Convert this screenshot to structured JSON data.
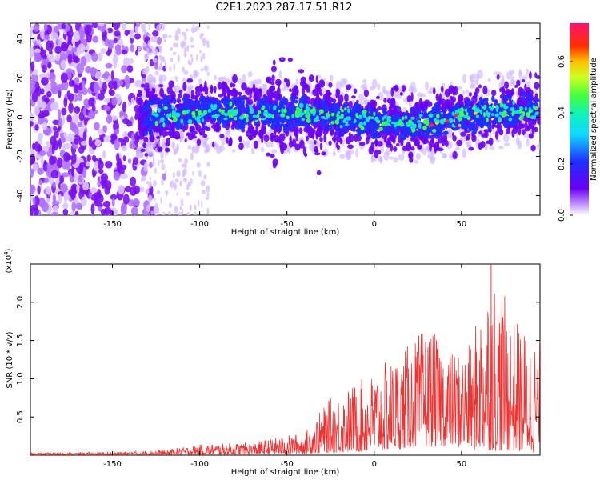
{
  "title": "C2E1.2023.287.17.51.R12",
  "colors": {
    "purple": "#6a00f0",
    "blue": "#1f2fff",
    "cyan": "#10e0e0",
    "green": "#40ff40",
    "red": "#ff2a2a",
    "snr_line": "#ee3333"
  },
  "chart_data": [
    {
      "type": "heatmap",
      "title": "",
      "xlabel": "Height of straight line (km)",
      "ylabel": "Frequency (Hz)",
      "xlim": [
        -197,
        95
      ],
      "ylim": [
        -50,
        48
      ],
      "x_ticks": [
        -150,
        -100,
        -50,
        0,
        50
      ],
      "y_ticks": [
        -40,
        -20,
        0,
        20,
        40
      ],
      "colorbar": {
        "label": "Normalized spectral amplitude",
        "range": [
          0.0,
          0.75
        ],
        "ticks": [
          0.0,
          0.2,
          0.4,
          0.6
        ],
        "tick_labels": [
          "0.0",
          "0.2",
          "0.4",
          "0.6"
        ]
      },
      "band_center_hz": [
        {
          "x": -130,
          "y": 0
        },
        {
          "x": -95,
          "y": 3
        },
        {
          "x": -40,
          "y": 2
        },
        {
          "x": 0,
          "y": -2
        },
        {
          "x": 30,
          "y": -3
        },
        {
          "x": 60,
          "y": 2
        },
        {
          "x": 95,
          "y": 4
        }
      ],
      "noise_region_km": [
        -197,
        -130
      ]
    },
    {
      "type": "line",
      "title": "",
      "xlabel": "Height of straight line (km)",
      "ylabel": "SNR (10 * v/v)",
      "y_multiplier": "(x10^4)",
      "y_multiplier_base": "(x10",
      "y_multiplier_exp": "4",
      "xlim": [
        -197,
        95
      ],
      "ylim": [
        0,
        2.5
      ],
      "x_ticks": [
        -150,
        -100,
        -50,
        0,
        50
      ],
      "y_ticks": [
        0.5,
        1.0,
        1.5,
        2.0
      ],
      "y_tick_labels": [
        "0.5",
        "1.0",
        "1.5",
        "2.0"
      ],
      "envelope": [
        {
          "x": -197,
          "lo": 0.01,
          "hi": 0.03
        },
        {
          "x": -150,
          "lo": 0.01,
          "hi": 0.04
        },
        {
          "x": -120,
          "lo": 0.01,
          "hi": 0.07
        },
        {
          "x": -100,
          "lo": 0.02,
          "hi": 0.14
        },
        {
          "x": -70,
          "lo": 0.03,
          "hi": 0.17
        },
        {
          "x": -40,
          "lo": 0.05,
          "hi": 0.3
        },
        {
          "x": -25,
          "lo": 0.1,
          "hi": 0.75
        },
        {
          "x": 0,
          "lo": 0.15,
          "hi": 1.1
        },
        {
          "x": 20,
          "lo": 0.3,
          "hi": 1.45
        },
        {
          "x": 30,
          "lo": 0.35,
          "hi": 1.7
        },
        {
          "x": 45,
          "lo": 0.4,
          "hi": 1.35
        },
        {
          "x": 55,
          "lo": 0.25,
          "hi": 1.45
        },
        {
          "x": 67,
          "lo": 0.2,
          "hi": 2.5
        },
        {
          "x": 80,
          "lo": 0.15,
          "hi": 1.8
        },
        {
          "x": 95,
          "lo": 0.1,
          "hi": 1.5
        }
      ]
    }
  ]
}
